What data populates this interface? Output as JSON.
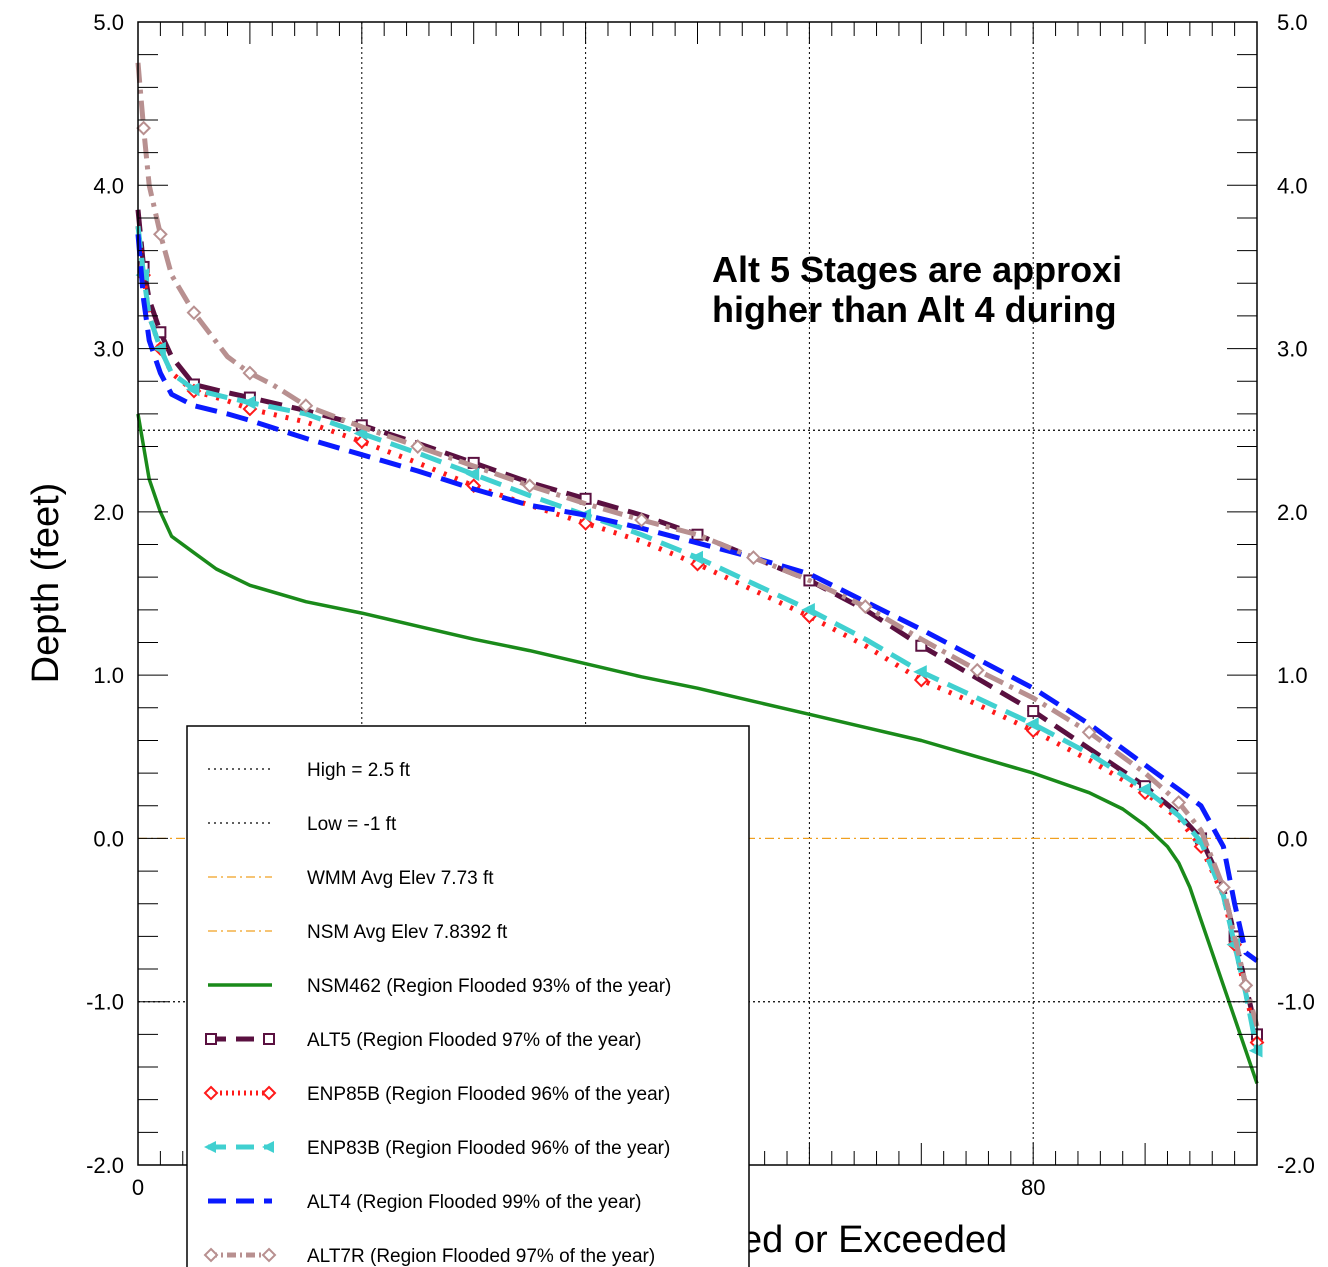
{
  "chart_data": {
    "type": "line",
    "xlabel": "ed or Exceeded",
    "ylabel": "Depth (feet)",
    "xlim": [
      0,
      100
    ],
    "ylim": [
      -2.0,
      5.0
    ],
    "x_tick_labels": [
      "0",
      "80"
    ],
    "x_tick_values": [
      0,
      80
    ],
    "y_tick_labels": [
      "5.0",
      "4.0",
      "3.0",
      "2.0",
      "1.0",
      "0.0",
      "-1.0",
      "-2.0"
    ],
    "y_tick_values": [
      5,
      4,
      3,
      2,
      1,
      0,
      -1,
      -2
    ],
    "annotation_lines": [
      "Alt 5 Stages are approxi",
      "higher than Alt 4 during"
    ],
    "legend_position": "bottom-left",
    "reference_lines": [
      {
        "name": "High = 2.5 ft",
        "y": 2.5,
        "color": "#000000",
        "style": "dotted"
      },
      {
        "name": "Low = -1 ft",
        "y": -1.0,
        "color": "#000000",
        "style": "dotted"
      },
      {
        "name": "WMM Avg Elev 7.73 ft",
        "y": 0.0,
        "color": "#f0a020",
        "style": "dashdot"
      },
      {
        "name": "NSM Avg Elev 7.8392 ft",
        "y": 0.0,
        "color": "#f0a020",
        "style": "dashdot"
      }
    ],
    "series": [
      {
        "name": "NSM462 (Region Flooded 93% of the year)",
        "color": "#1a8a1a",
        "style": "solid",
        "marker": "none",
        "x": [
          0,
          0.5,
          1,
          2,
          3,
          5,
          7,
          10,
          15,
          20,
          25,
          30,
          35,
          40,
          45,
          50,
          55,
          60,
          65,
          70,
          75,
          80,
          85,
          88,
          90,
          92,
          93,
          94,
          95,
          96,
          97,
          98,
          99,
          100
        ],
        "y": [
          2.6,
          2.4,
          2.2,
          2.0,
          1.85,
          1.75,
          1.65,
          1.55,
          1.45,
          1.38,
          1.3,
          1.22,
          1.15,
          1.07,
          0.99,
          0.92,
          0.84,
          0.76,
          0.68,
          0.6,
          0.5,
          0.4,
          0.28,
          0.18,
          0.08,
          -0.05,
          -0.15,
          -0.3,
          -0.5,
          -0.7,
          -0.9,
          -1.1,
          -1.3,
          -1.5
        ]
      },
      {
        "name": "ALT5 (Region Flooded 97% of the year)",
        "color": "#5a1040",
        "style": "dashed",
        "marker": "square",
        "x": [
          0,
          0.5,
          1,
          2,
          3,
          5,
          8,
          10,
          15,
          20,
          25,
          30,
          35,
          40,
          45,
          50,
          55,
          60,
          65,
          70,
          75,
          80,
          85,
          90,
          93,
          95,
          97,
          98,
          99,
          100
        ],
        "y": [
          3.85,
          3.5,
          3.3,
          3.1,
          2.95,
          2.78,
          2.73,
          2.7,
          2.62,
          2.53,
          2.42,
          2.3,
          2.18,
          2.08,
          1.98,
          1.86,
          1.72,
          1.58,
          1.4,
          1.18,
          0.98,
          0.78,
          0.55,
          0.32,
          0.15,
          0.0,
          -0.3,
          -0.6,
          -0.9,
          -1.2
        ]
      },
      {
        "name": "ENP85B (Region Flooded 96% of the year)",
        "color": "#ff1a1a",
        "style": "dotted",
        "marker": "diamond",
        "x": [
          0,
          0.5,
          1,
          2,
          3,
          5,
          8,
          10,
          15,
          20,
          25,
          30,
          35,
          40,
          45,
          50,
          55,
          60,
          65,
          70,
          75,
          80,
          85,
          90,
          93,
          95,
          97,
          98,
          99,
          100
        ],
        "y": [
          3.75,
          3.45,
          3.2,
          3.0,
          2.85,
          2.74,
          2.68,
          2.63,
          2.55,
          2.43,
          2.3,
          2.16,
          2.04,
          1.93,
          1.82,
          1.68,
          1.52,
          1.36,
          1.18,
          0.97,
          0.82,
          0.66,
          0.48,
          0.28,
          0.12,
          -0.05,
          -0.35,
          -0.65,
          -0.95,
          -1.25
        ]
      },
      {
        "name": "ENP83B (Region Flooded 96% of the year)",
        "color": "#40d0d0",
        "style": "dashed",
        "marker": "triangle-left",
        "x": [
          0,
          0.5,
          1,
          2,
          3,
          5,
          8,
          10,
          15,
          20,
          25,
          30,
          35,
          40,
          45,
          50,
          55,
          60,
          65,
          70,
          75,
          80,
          85,
          90,
          93,
          95,
          97,
          98,
          99,
          100
        ],
        "y": [
          3.75,
          3.45,
          3.2,
          3.0,
          2.85,
          2.75,
          2.7,
          2.67,
          2.6,
          2.48,
          2.36,
          2.23,
          2.1,
          1.98,
          1.86,
          1.72,
          1.56,
          1.4,
          1.22,
          1.02,
          0.86,
          0.7,
          0.52,
          0.3,
          0.14,
          -0.02,
          -0.35,
          -0.65,
          -0.95,
          -1.3
        ]
      },
      {
        "name": "ALT4 (Region Flooded 99% of the year)",
        "color": "#0a1aff",
        "style": "dashed",
        "marker": "none",
        "x": [
          0,
          0.5,
          1,
          2,
          3,
          5,
          8,
          10,
          15,
          20,
          25,
          30,
          35,
          40,
          45,
          50,
          55,
          60,
          65,
          70,
          75,
          80,
          85,
          90,
          93,
          95,
          97,
          98,
          99,
          100
        ],
        "y": [
          3.7,
          3.3,
          3.05,
          2.85,
          2.72,
          2.65,
          2.6,
          2.56,
          2.45,
          2.35,
          2.25,
          2.14,
          2.04,
          1.98,
          1.9,
          1.81,
          1.72,
          1.62,
          1.45,
          1.28,
          1.1,
          0.92,
          0.7,
          0.45,
          0.3,
          0.2,
          -0.05,
          -0.4,
          -0.7,
          -0.75
        ]
      },
      {
        "name": "ALT7R (Region Flooded 97% of the year)",
        "color": "#b89090",
        "style": "dashdot",
        "marker": "diamond",
        "x": [
          0,
          0.5,
          1,
          2,
          3,
          5,
          8,
          10,
          12,
          15,
          20,
          25,
          30,
          35,
          40,
          45,
          50,
          55,
          60,
          65,
          70,
          75,
          80,
          85,
          90,
          93,
          95,
          97,
          98,
          99,
          100
        ],
        "y": [
          4.75,
          4.35,
          4.0,
          3.7,
          3.45,
          3.22,
          2.95,
          2.85,
          2.78,
          2.65,
          2.52,
          2.4,
          2.28,
          2.16,
          2.05,
          1.95,
          1.86,
          1.72,
          1.58,
          1.42,
          1.22,
          1.03,
          0.86,
          0.65,
          0.4,
          0.22,
          0.05,
          -0.3,
          -0.6,
          -0.9,
          -1.15
        ]
      }
    ]
  },
  "legend_items": [
    {
      "label": "High = 2.5 ft"
    },
    {
      "label": "Low = -1 ft"
    },
    {
      "label": "WMM Avg Elev 7.73 ft"
    },
    {
      "label": "NSM Avg Elev 7.8392 ft"
    },
    {
      "label": "NSM462 (Region Flooded 93% of the year)"
    },
    {
      "label": "ALT5 (Region Flooded 97% of the year)"
    },
    {
      "label": "ENP85B (Region Flooded 96% of the year)"
    },
    {
      "label": "ENP83B (Region Flooded 96% of the year)"
    },
    {
      "label": "ALT4 (Region Flooded 99% of the year)"
    },
    {
      "label": "ALT7R (Region Flooded 97% of the year)"
    }
  ]
}
